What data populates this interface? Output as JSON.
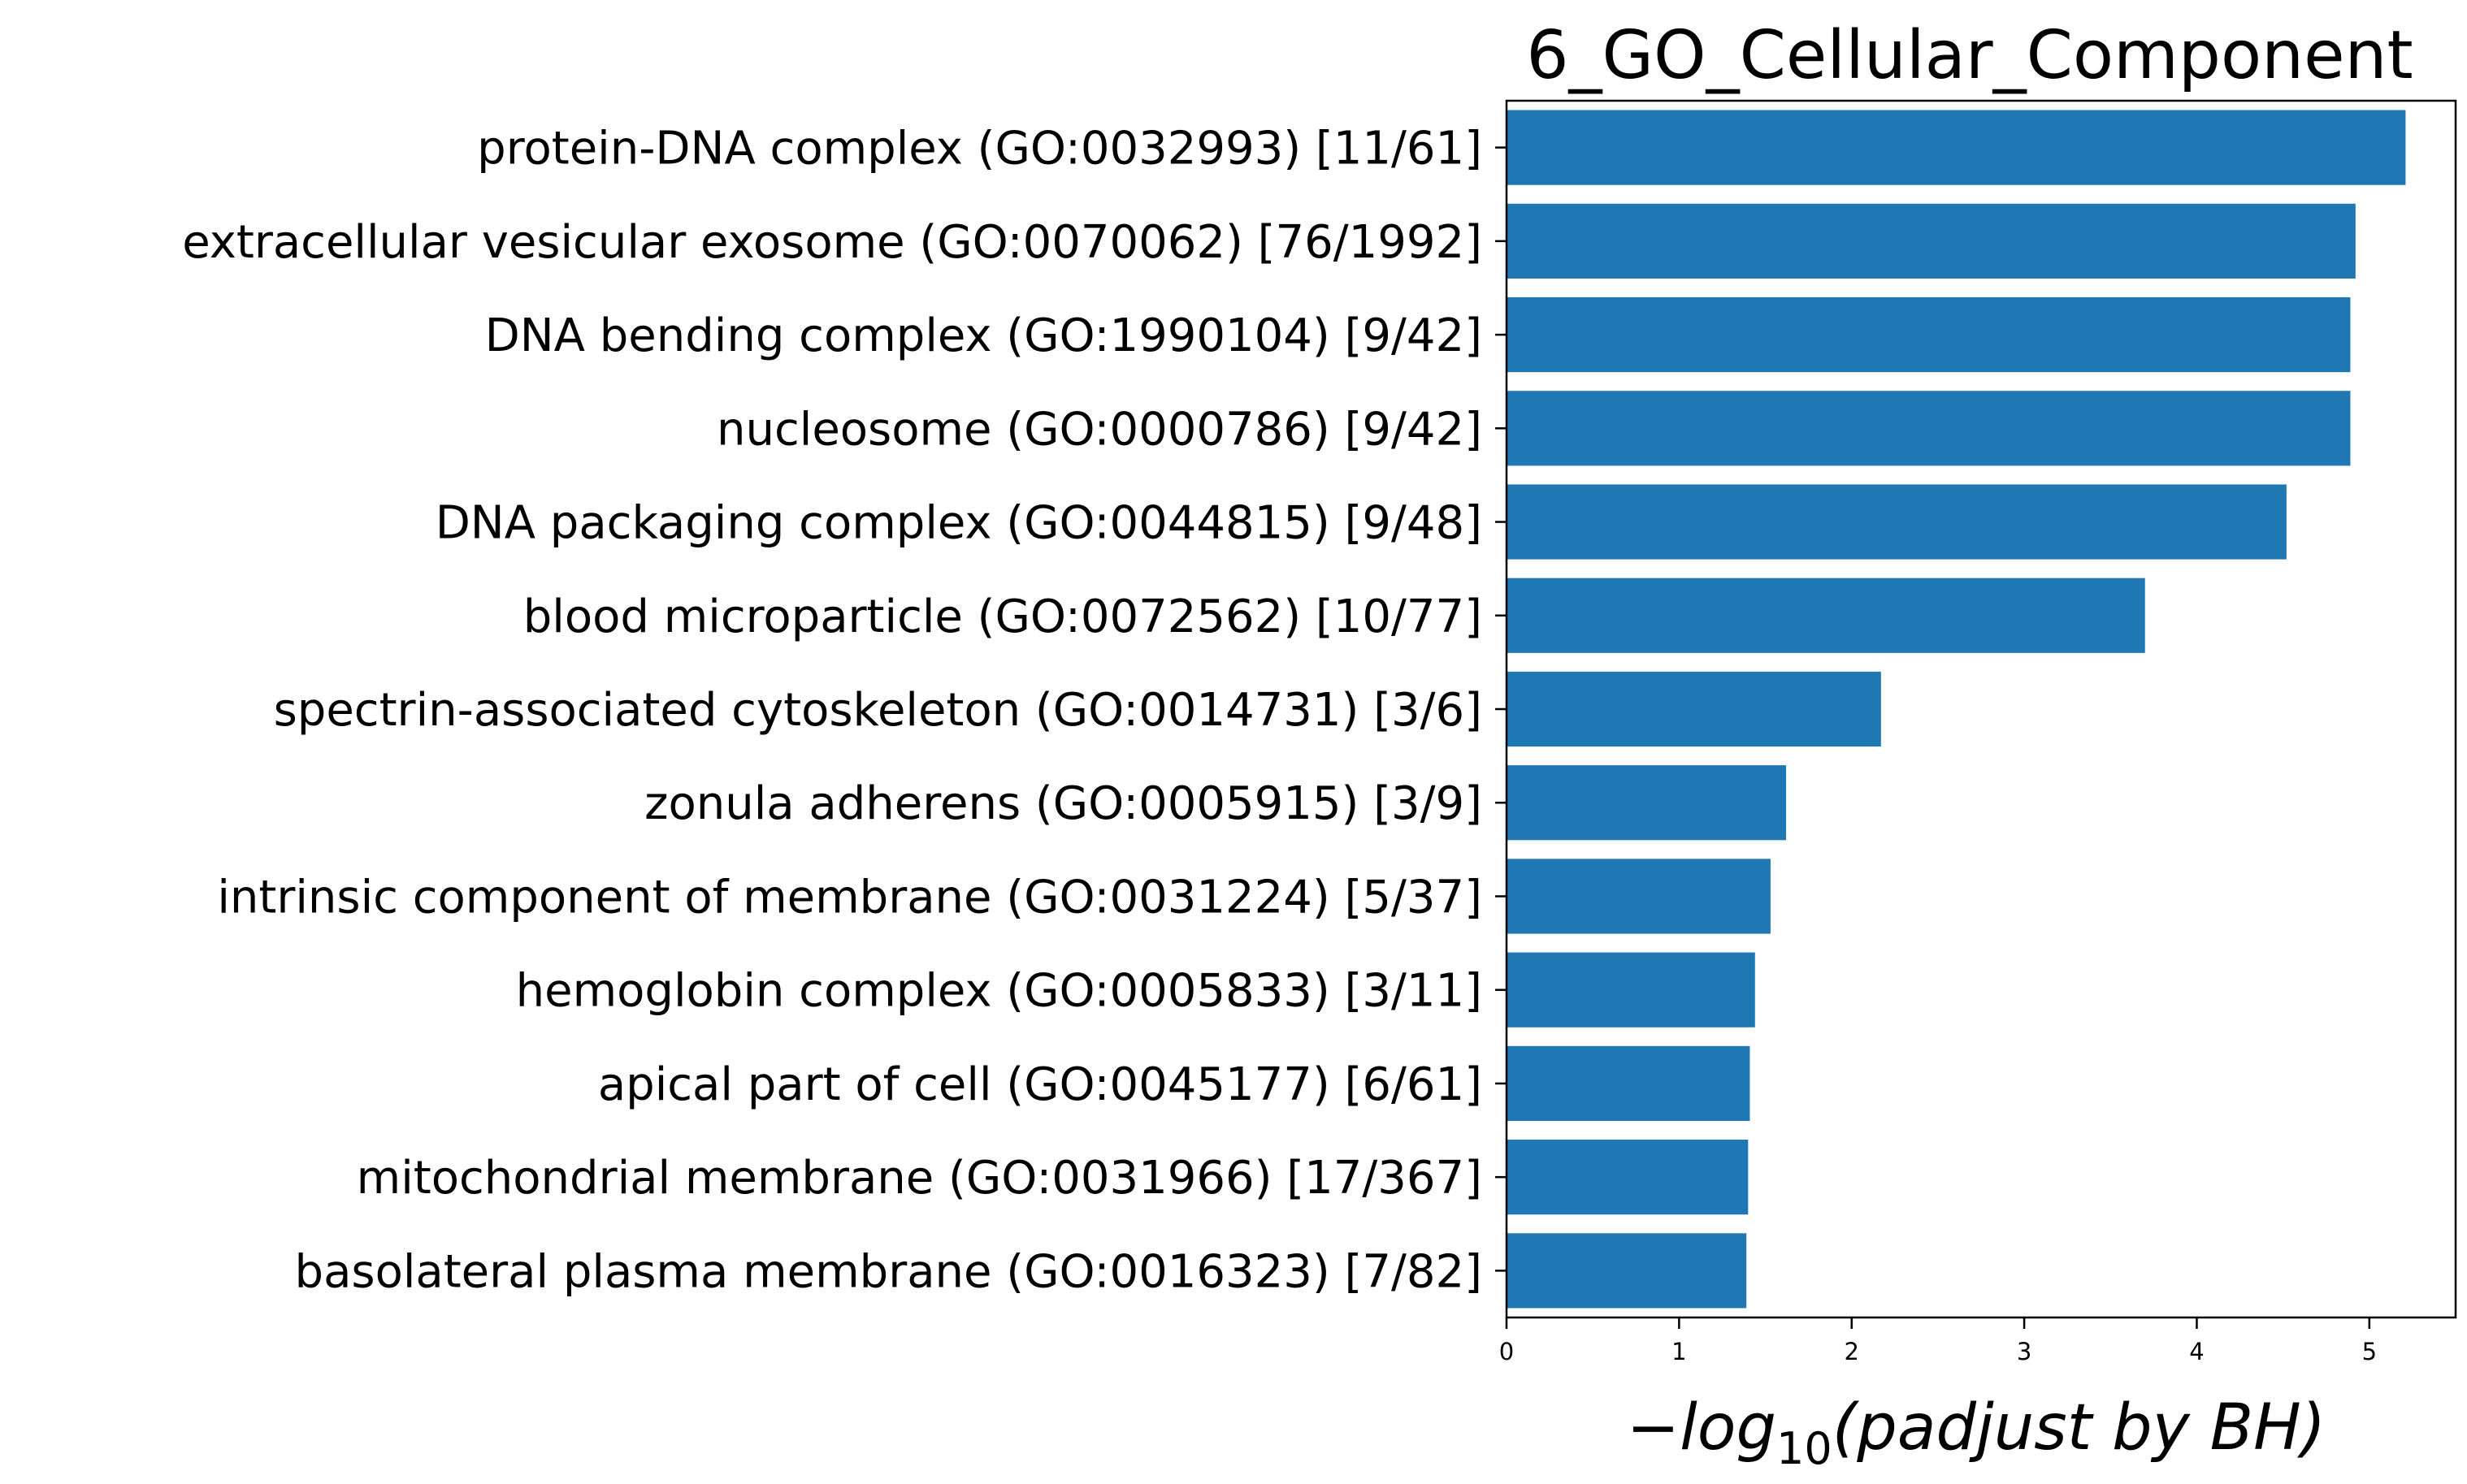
{
  "chart_data": {
    "type": "bar",
    "orientation": "horizontal",
    "title": "6_GO_Cellular_Component",
    "xlabel": {
      "prefix": "−",
      "log": "log",
      "subscript": "10",
      "rest": "(padjust by BH)"
    },
    "ylabel": "",
    "xlim": [
      0,
      5.5
    ],
    "xticks": [
      "0",
      "1",
      "2",
      "3",
      "4",
      "5"
    ],
    "bar_color": "#1f77b4",
    "grid": false,
    "legend": "none",
    "categories": [
      "protein-DNA complex (GO:0032993) [11/61]",
      "extracellular vesicular exosome (GO:0070062) [76/1992]",
      "DNA bending complex (GO:1990104) [9/42]",
      "nucleosome (GO:0000786) [9/42]",
      "DNA packaging complex (GO:0044815) [9/48]",
      "blood microparticle (GO:0072562) [10/77]",
      "spectrin-associated cytoskeleton (GO:0014731) [3/6]",
      "zonula adherens (GO:0005915) [3/9]",
      "intrinsic component of membrane (GO:0031224) [5/37]",
      "hemoglobin complex (GO:0005833) [3/11]",
      "apical part of cell (GO:0045177) [6/61]",
      "mitochondrial membrane (GO:0031966) [17/367]",
      "basolateral plasma membrane (GO:0016323) [7/82]"
    ],
    "values": [
      5.21,
      4.92,
      4.89,
      4.89,
      4.52,
      3.7,
      2.17,
      1.62,
      1.53,
      1.44,
      1.41,
      1.4,
      1.39
    ]
  }
}
